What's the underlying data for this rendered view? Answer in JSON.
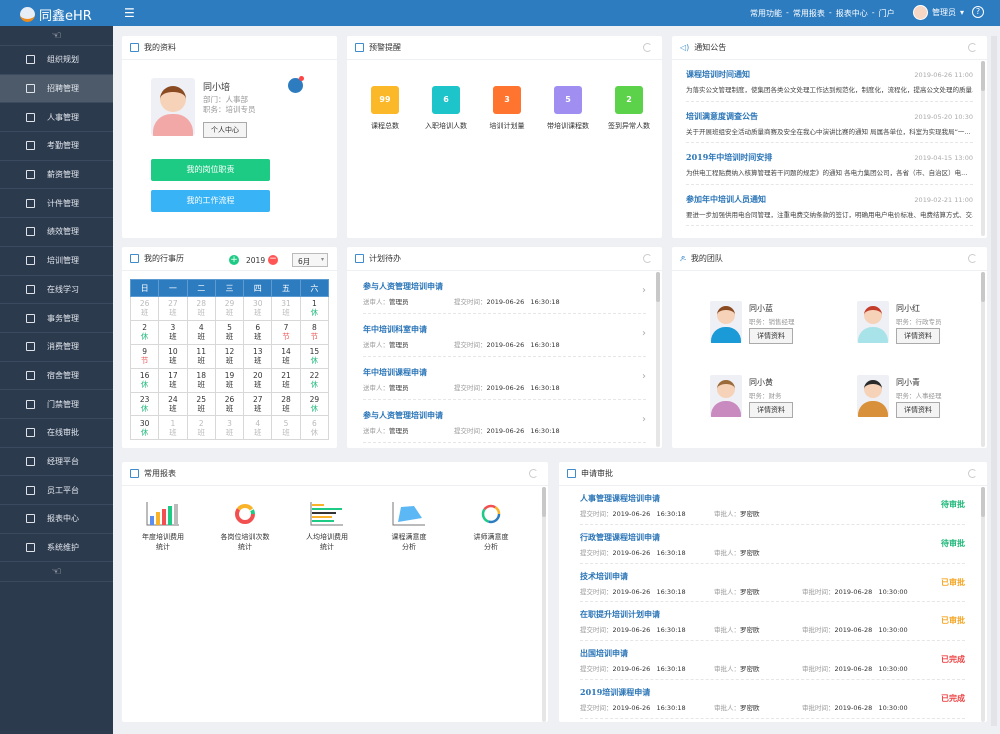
{
  "app": {
    "logo": "同鑫eHR",
    "menu_icon": "list-icon",
    "nav": [
      "常用功能",
      "常用报表",
      "报表中心",
      "门户"
    ],
    "nav_sep": "-",
    "user": "管理员",
    "help": "?"
  },
  "sidebar": {
    "items": [
      {
        "label": "组织规划"
      },
      {
        "label": "招聘管理",
        "active": true
      },
      {
        "label": "人事管理"
      },
      {
        "label": "考勤管理"
      },
      {
        "label": "薪资管理"
      },
      {
        "label": "计件管理"
      },
      {
        "label": "绩效管理"
      },
      {
        "label": "培训管理"
      },
      {
        "label": "在线学习"
      },
      {
        "label": "事务管理"
      },
      {
        "label": "消费管理"
      },
      {
        "label": "宿舍管理"
      },
      {
        "label": "门禁管理"
      },
      {
        "label": "在线审批"
      },
      {
        "label": "经理平台"
      },
      {
        "label": "员工平台"
      },
      {
        "label": "报表中心"
      },
      {
        "label": "系统维护"
      }
    ]
  },
  "profile": {
    "title": "我的资料",
    "name": "同小培",
    "dept": "部门：人事部",
    "position": "职务：培训专员",
    "center_btn": "个人中心",
    "btn1": "我的岗位职责",
    "btn2": "我的工作流程"
  },
  "alerts": {
    "title": "预警提醒",
    "items": [
      {
        "value": "99",
        "label": "课程总数",
        "color": "#fbb829"
      },
      {
        "value": "6",
        "label": "入职培训人数",
        "color": "#1dc4c9"
      },
      {
        "value": "3",
        "label": "培训计划量",
        "color": "#ff7530"
      },
      {
        "value": "5",
        "label": "带培训课程数",
        "color": "#a08ff0"
      },
      {
        "value": "2",
        "label": "签到异常人数",
        "color": "#5bd24a"
      }
    ]
  },
  "notices": {
    "title": "通知公告",
    "items": [
      {
        "title": "课程培训时间通知",
        "date": "2019-06-26 11:00",
        "body": "为落实公文管理制度，使集团各类公文处理工作达到规范化，制度化，流程化，提高公文处理的质量..."
      },
      {
        "title": "培训满意度调查公告",
        "date": "2019-05-20 10:30",
        "body": "关于开展班组安全活动质量商赛及安全在我心中演讲比赛的通知 局属各单位，科室为实现我局“一..."
      },
      {
        "title": "2019年中培训时间安排",
        "date": "2019-04-15 13:00",
        "body": "为供电工程贴费纳入核算管理若干问题的规定》的通知    各电力集团公司，各省（市、自治区）电..."
      },
      {
        "title": "参加年中培训人员通知",
        "date": "2019-02-21 11:00",
        "body": "要进一步加强供用电合同管理，注重电费交纳条款的签订，明确用电户电价标准、电费结算方式、交..."
      }
    ]
  },
  "calendar": {
    "title": "我的行事历",
    "year": "2019",
    "month": "6月",
    "weekdays": [
      "日",
      "一",
      "二",
      "三",
      "四",
      "五",
      "六"
    ],
    "rows": [
      [
        [
          "26",
          "班",
          "o"
        ],
        [
          "27",
          "班",
          "o"
        ],
        [
          "28",
          "班",
          "o"
        ],
        [
          "29",
          "班",
          "o"
        ],
        [
          "30",
          "班",
          "o"
        ],
        [
          "31",
          "班",
          "o"
        ],
        [
          "1",
          "休",
          "g"
        ]
      ],
      [
        [
          "2",
          "休",
          "g"
        ],
        [
          "3",
          "班",
          ""
        ],
        [
          "4",
          "班",
          ""
        ],
        [
          "5",
          "班",
          ""
        ],
        [
          "6",
          "班",
          ""
        ],
        [
          "7",
          "节",
          "r"
        ],
        [
          "8",
          "节",
          "r"
        ]
      ],
      [
        [
          "9",
          "节",
          "r"
        ],
        [
          "10",
          "班",
          ""
        ],
        [
          "11",
          "班",
          ""
        ],
        [
          "12",
          "班",
          ""
        ],
        [
          "13",
          "班",
          ""
        ],
        [
          "14",
          "班",
          ""
        ],
        [
          "15",
          "休",
          "g"
        ]
      ],
      [
        [
          "16",
          "休",
          "g"
        ],
        [
          "17",
          "班",
          ""
        ],
        [
          "18",
          "班",
          ""
        ],
        [
          "19",
          "班",
          ""
        ],
        [
          "20",
          "班",
          ""
        ],
        [
          "21",
          "班",
          ""
        ],
        [
          "22",
          "休",
          "g"
        ]
      ],
      [
        [
          "23",
          "休",
          "g"
        ],
        [
          "24",
          "班",
          ""
        ],
        [
          "25",
          "班",
          ""
        ],
        [
          "26",
          "班",
          ""
        ],
        [
          "27",
          "班",
          ""
        ],
        [
          "28",
          "班",
          ""
        ],
        [
          "29",
          "休",
          "g"
        ]
      ],
      [
        [
          "30",
          "休",
          "g"
        ],
        [
          "1",
          "班",
          "o"
        ],
        [
          "2",
          "班",
          "o"
        ],
        [
          "3",
          "班",
          "o"
        ],
        [
          "4",
          "班",
          "o"
        ],
        [
          "5",
          "班",
          "o"
        ],
        [
          "6",
          "休",
          "o"
        ]
      ]
    ]
  },
  "todo": {
    "title": "计划待办",
    "sender_label": "送审人：",
    "time_label": "提交时间：",
    "items": [
      {
        "title": "参与人资管理培训申请",
        "sender": "管理员",
        "time": "2019-06-26   16:30:18"
      },
      {
        "title": "年中培训科室申请",
        "sender": "管理员",
        "time": "2019-06-26   16:30:18"
      },
      {
        "title": "年中培训课程申请",
        "sender": "管理员",
        "time": "2019-06-26   16:30:18"
      },
      {
        "title": "参与人资管理培训申请",
        "sender": "管理员",
        "time": "2019-06-26   16:30:18"
      }
    ]
  },
  "team": {
    "title": "我的团队",
    "btn": "详情资料",
    "members": [
      {
        "name": "同小蓝",
        "role": "职务：销售经理",
        "color": "#1a9ad6",
        "hair": "#8a4b22"
      },
      {
        "name": "同小红",
        "role": "职务：行政专员",
        "color": "#a9e3ea",
        "hair": "#c43c2a"
      },
      {
        "name": "同小黄",
        "role": "职务：财务",
        "color": "#c98ac0",
        "hair": "#9b6a3a"
      },
      {
        "name": "同小青",
        "role": "职务：人事经理",
        "color": "#d8903a",
        "hair": "#2a2a2a"
      }
    ]
  },
  "reports": {
    "title": "常用报表",
    "items": [
      {
        "l1": "年度培训费用",
        "l2": "统计",
        "icon": "bar-chart-icon"
      },
      {
        "l1": "各岗位培训次数",
        "l2": "统计",
        "icon": "donut-chart-icon"
      },
      {
        "l1": "人均培训费用",
        "l2": "统计",
        "icon": "horizontal-bar-chart-icon"
      },
      {
        "l1": "课程满意度",
        "l2": "分析",
        "icon": "area-chart-icon"
      },
      {
        "l1": "讲师满意度",
        "l2": "分析",
        "icon": "ring-chart-icon"
      }
    ]
  },
  "approvals": {
    "title": "申请审批",
    "submit_label": "提交时间：",
    "approver_label": "审批人：",
    "approve_time_label": "审批时间：",
    "items": [
      {
        "title": "人事管理课程培训申请",
        "submit": "2019-06-26   16:30:18",
        "approver": "罗密欧",
        "status": "待审批",
        "color": "#1fb87a"
      },
      {
        "title": "行政管理课程培训申请",
        "submit": "2019-06-26   16:30:18",
        "approver": "罗密欧",
        "status": "待审批",
        "color": "#1fb87a"
      },
      {
        "title": "技术培训申请",
        "submit": "2019-06-26   16:30:18",
        "approver": "罗密欧",
        "approve_time": "2019-06-28   10:30:00",
        "status": "已审批",
        "color": "#f5a623"
      },
      {
        "title": "在职提升培训计划申请",
        "submit": "2019-06-26   16:30:18",
        "approver": "罗密欧",
        "approve_time": "2019-06-28   10:30:00",
        "status": "已审批",
        "color": "#f5a623"
      },
      {
        "title": "出国培训申请",
        "submit": "2019-06-26   16:30:18",
        "approver": "罗密欧",
        "approve_time": "2019-06-28   10:30:00",
        "status": "已完成",
        "color": "#ee4444"
      },
      {
        "title": "2019培训课程申请",
        "submit": "2019-06-26   16:30:18",
        "approver": "罗密欧",
        "approve_time": "2019-06-28   10:30:00",
        "status": "已完成",
        "color": "#ee4444"
      }
    ]
  }
}
